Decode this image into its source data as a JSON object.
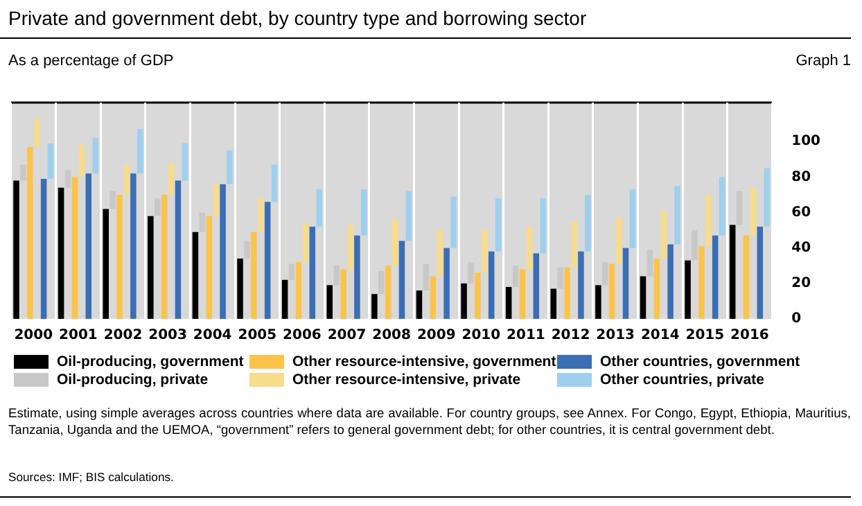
{
  "chart_data": {
    "type": "bar",
    "title": "Private and government debt, by country type and borrowing sector",
    "subtitle": "As a percentage of GDP",
    "annotations": [
      "Graph 1",
      "Estimate, using simple averages across countries where data are available. For country groups, see Annex. For Congo, Egypt, Ethiopia, Mauritius, Tanzania, Uganda and the UEMOA, “government” refers to general government debt; for other countries, it is central government debt.",
      "Sources: IMF; BIS calculations."
    ],
    "categories": [
      "2000",
      "2001",
      "2002",
      "2003",
      "2004",
      "2005",
      "2006",
      "2007",
      "2008",
      "2009",
      "2010",
      "2011",
      "2012",
      "2013",
      "2014",
      "2015",
      "2016"
    ],
    "grid": "x",
    "legend": "bottom",
    "ylim": [
      0,
      122
    ],
    "yticks": [
      0,
      20,
      40,
      60,
      80,
      100
    ],
    "series": [
      {
        "name": "Oil-producing, government",
        "color": "#000000",
        "values": [
          78,
          74,
          62,
          58,
          49,
          34,
          22,
          19,
          14,
          16,
          20,
          18,
          17,
          19,
          24,
          33,
          53
        ]
      },
      {
        "name": "Oil-producing, private",
        "color": "#c8c8c8",
        "base": [
          78,
          74,
          62,
          58,
          49,
          34,
          22,
          19,
          14,
          16,
          20,
          18,
          17,
          19,
          24,
          33,
          53
        ],
        "values": [
          9,
          10,
          10,
          10,
          11,
          10,
          9,
          11,
          13,
          15,
          12,
          12,
          12,
          13,
          15,
          17,
          19
        ]
      },
      {
        "name": "Other resource-intensive, government",
        "color": "#fcc34a",
        "values": [
          97,
          80,
          70,
          70,
          58,
          49,
          32,
          28,
          30,
          24,
          26,
          28,
          29,
          31,
          34,
          41,
          47
        ]
      },
      {
        "name": "Other resource-intensive, private",
        "color": "#f7dc8c",
        "base": [
          97,
          80,
          70,
          70,
          58,
          49,
          32,
          28,
          30,
          24,
          26,
          28,
          29,
          31,
          34,
          41,
          47
        ],
        "values": [
          16,
          18,
          17,
          18,
          18,
          19,
          22,
          25,
          26,
          26,
          24,
          24,
          26,
          26,
          27,
          29,
          27
        ]
      },
      {
        "name": "Other countries, government",
        "color": "#3a6eb5",
        "values": [
          79,
          82,
          82,
          78,
          76,
          66,
          52,
          47,
          44,
          40,
          38,
          37,
          38,
          40,
          42,
          47,
          52
        ]
      },
      {
        "name": "Other countries, private",
        "color": "#9fcfee",
        "base": [
          79,
          82,
          82,
          78,
          76,
          66,
          52,
          47,
          44,
          40,
          38,
          37,
          38,
          40,
          42,
          47,
          52
        ],
        "values": [
          20,
          20,
          25,
          21,
          19,
          21,
          21,
          26,
          28,
          29,
          30,
          31,
          32,
          33,
          33,
          33,
          33
        ]
      }
    ]
  }
}
